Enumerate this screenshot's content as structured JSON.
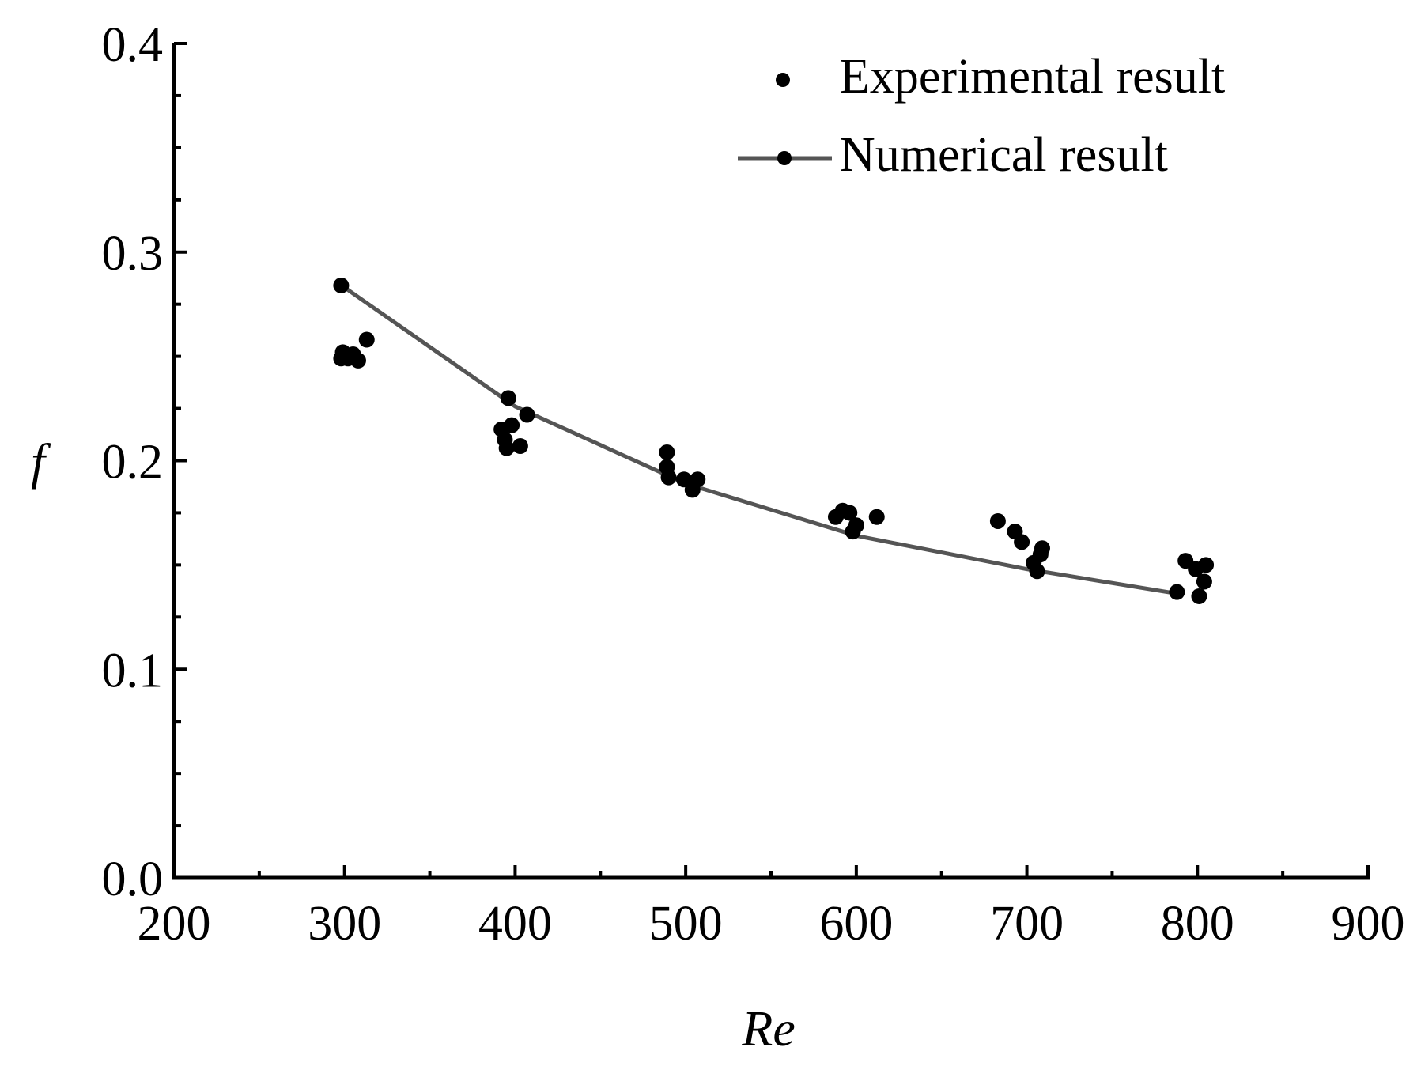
{
  "chart_data": {
    "type": "scatter",
    "title": "",
    "xlabel": "Re",
    "ylabel": "f",
    "xlim": [
      200,
      900
    ],
    "ylim": [
      0.0,
      0.4
    ],
    "x_ticks": [
      "200",
      "300",
      "400",
      "500",
      "600",
      "700",
      "800",
      "900"
    ],
    "y_ticks": [
      "0.0",
      "0.1",
      "0.2",
      "0.3",
      "0.4"
    ],
    "x_tick_values": [
      200,
      300,
      400,
      500,
      600,
      700,
      800,
      900
    ],
    "y_tick_values": [
      0.0,
      0.1,
      0.2,
      0.3,
      0.4
    ],
    "x_minor_step": 50,
    "y_minor_step": 0.025,
    "grid": false,
    "legend_position": "top-right",
    "series": [
      {
        "name": "Experimental result",
        "kind": "scatter",
        "color": "#000000",
        "points": [
          [
            298,
            0.284
          ],
          [
            298,
            0.249
          ],
          [
            299,
            0.252
          ],
          [
            302,
            0.249
          ],
          [
            305,
            0.251
          ],
          [
            308,
            0.248
          ],
          [
            313,
            0.258
          ],
          [
            392,
            0.215
          ],
          [
            394,
            0.21
          ],
          [
            395,
            0.206
          ],
          [
            396,
            0.23
          ],
          [
            398,
            0.217
          ],
          [
            403,
            0.207
          ],
          [
            407,
            0.222
          ],
          [
            489,
            0.204
          ],
          [
            489,
            0.197
          ],
          [
            490,
            0.192
          ],
          [
            499,
            0.191
          ],
          [
            504,
            0.186
          ],
          [
            507,
            0.191
          ],
          [
            588,
            0.173
          ],
          [
            592,
            0.176
          ],
          [
            596,
            0.175
          ],
          [
            598,
            0.166
          ],
          [
            600,
            0.169
          ],
          [
            612,
            0.173
          ],
          [
            683,
            0.171
          ],
          [
            693,
            0.166
          ],
          [
            697,
            0.161
          ],
          [
            704,
            0.151
          ],
          [
            706,
            0.147
          ],
          [
            708,
            0.155
          ],
          [
            709,
            0.158
          ],
          [
            788,
            0.137
          ],
          [
            793,
            0.152
          ],
          [
            799,
            0.148
          ],
          [
            801,
            0.135
          ],
          [
            804,
            0.142
          ],
          [
            805,
            0.15
          ]
        ]
      },
      {
        "name": "Numerical result",
        "kind": "line",
        "color": "#555555",
        "points": [
          [
            300,
            0.283
          ],
          [
            400,
            0.226
          ],
          [
            500,
            0.189
          ],
          [
            600,
            0.164
          ],
          [
            700,
            0.148
          ],
          [
            790,
            0.136
          ]
        ]
      }
    ]
  }
}
